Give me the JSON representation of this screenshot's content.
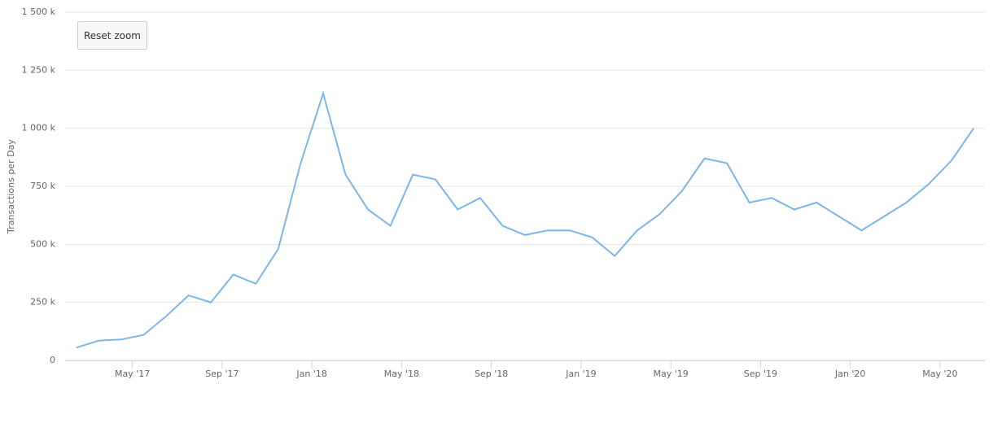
{
  "chart_data": {
    "type": "line",
    "y_label": "Transactions per Day",
    "button": "Reset zoom",
    "x": [
      "2017-02",
      "2017-03",
      "2017-04",
      "2017-05",
      "2017-06",
      "2017-07",
      "2017-08",
      "2017-09",
      "2017-10",
      "2017-11",
      "2017-12",
      "2018-01",
      "2018-02",
      "2018-03",
      "2018-04",
      "2018-05",
      "2018-06",
      "2018-07",
      "2018-08",
      "2018-09",
      "2018-10",
      "2018-11",
      "2018-12",
      "2019-01",
      "2019-02",
      "2019-03",
      "2019-04",
      "2019-05",
      "2019-06",
      "2019-07",
      "2019-08",
      "2019-09",
      "2019-10",
      "2019-11",
      "2019-12",
      "2020-01",
      "2020-02",
      "2020-03",
      "2020-04",
      "2020-05",
      "2020-06"
    ],
    "series": [
      {
        "name": "Transactions per Day",
        "color": "#7cb5ec",
        "values": [
          55000,
          85000,
          90000,
          110000,
          190000,
          280000,
          250000,
          370000,
          330000,
          480000,
          850000,
          1150000,
          800000,
          650000,
          580000,
          800000,
          780000,
          650000,
          700000,
          580000,
          540000,
          560000,
          560000,
          530000,
          450000,
          560000,
          630000,
          730000,
          870000,
          850000,
          680000,
          700000,
          650000,
          680000,
          620000,
          560000,
          620000,
          680000,
          760000,
          860000,
          1000000
        ]
      }
    ],
    "xlim": [
      "2017-02",
      "2020-06"
    ],
    "xticks": [
      {
        "value": "2017-05",
        "label": "May '17"
      },
      {
        "value": "2017-09",
        "label": "Sep '17"
      },
      {
        "value": "2018-01",
        "label": "Jan '18"
      },
      {
        "value": "2018-05",
        "label": "May '18"
      },
      {
        "value": "2018-09",
        "label": "Sep '18"
      },
      {
        "value": "2019-01",
        "label": "Jan '19"
      },
      {
        "value": "2019-05",
        "label": "May '19"
      },
      {
        "value": "2019-09",
        "label": "Sep '19"
      },
      {
        "value": "2020-01",
        "label": "Jan '20"
      },
      {
        "value": "2020-05",
        "label": "May '20"
      }
    ],
    "ylim": [
      0,
      1500000
    ],
    "yticks": [
      0,
      {
        "value": 250000,
        "label": "250 k"
      },
      {
        "value": 500000,
        "label": "500 k"
      },
      {
        "value": 750000,
        "label": "750 k"
      },
      {
        "value": 1000000,
        "label": "1 000 k"
      },
      {
        "value": 1250000,
        "label": "1 250 k"
      },
      {
        "value": 1500000,
        "label": "1 500 k"
      }
    ],
    "grid": true
  }
}
